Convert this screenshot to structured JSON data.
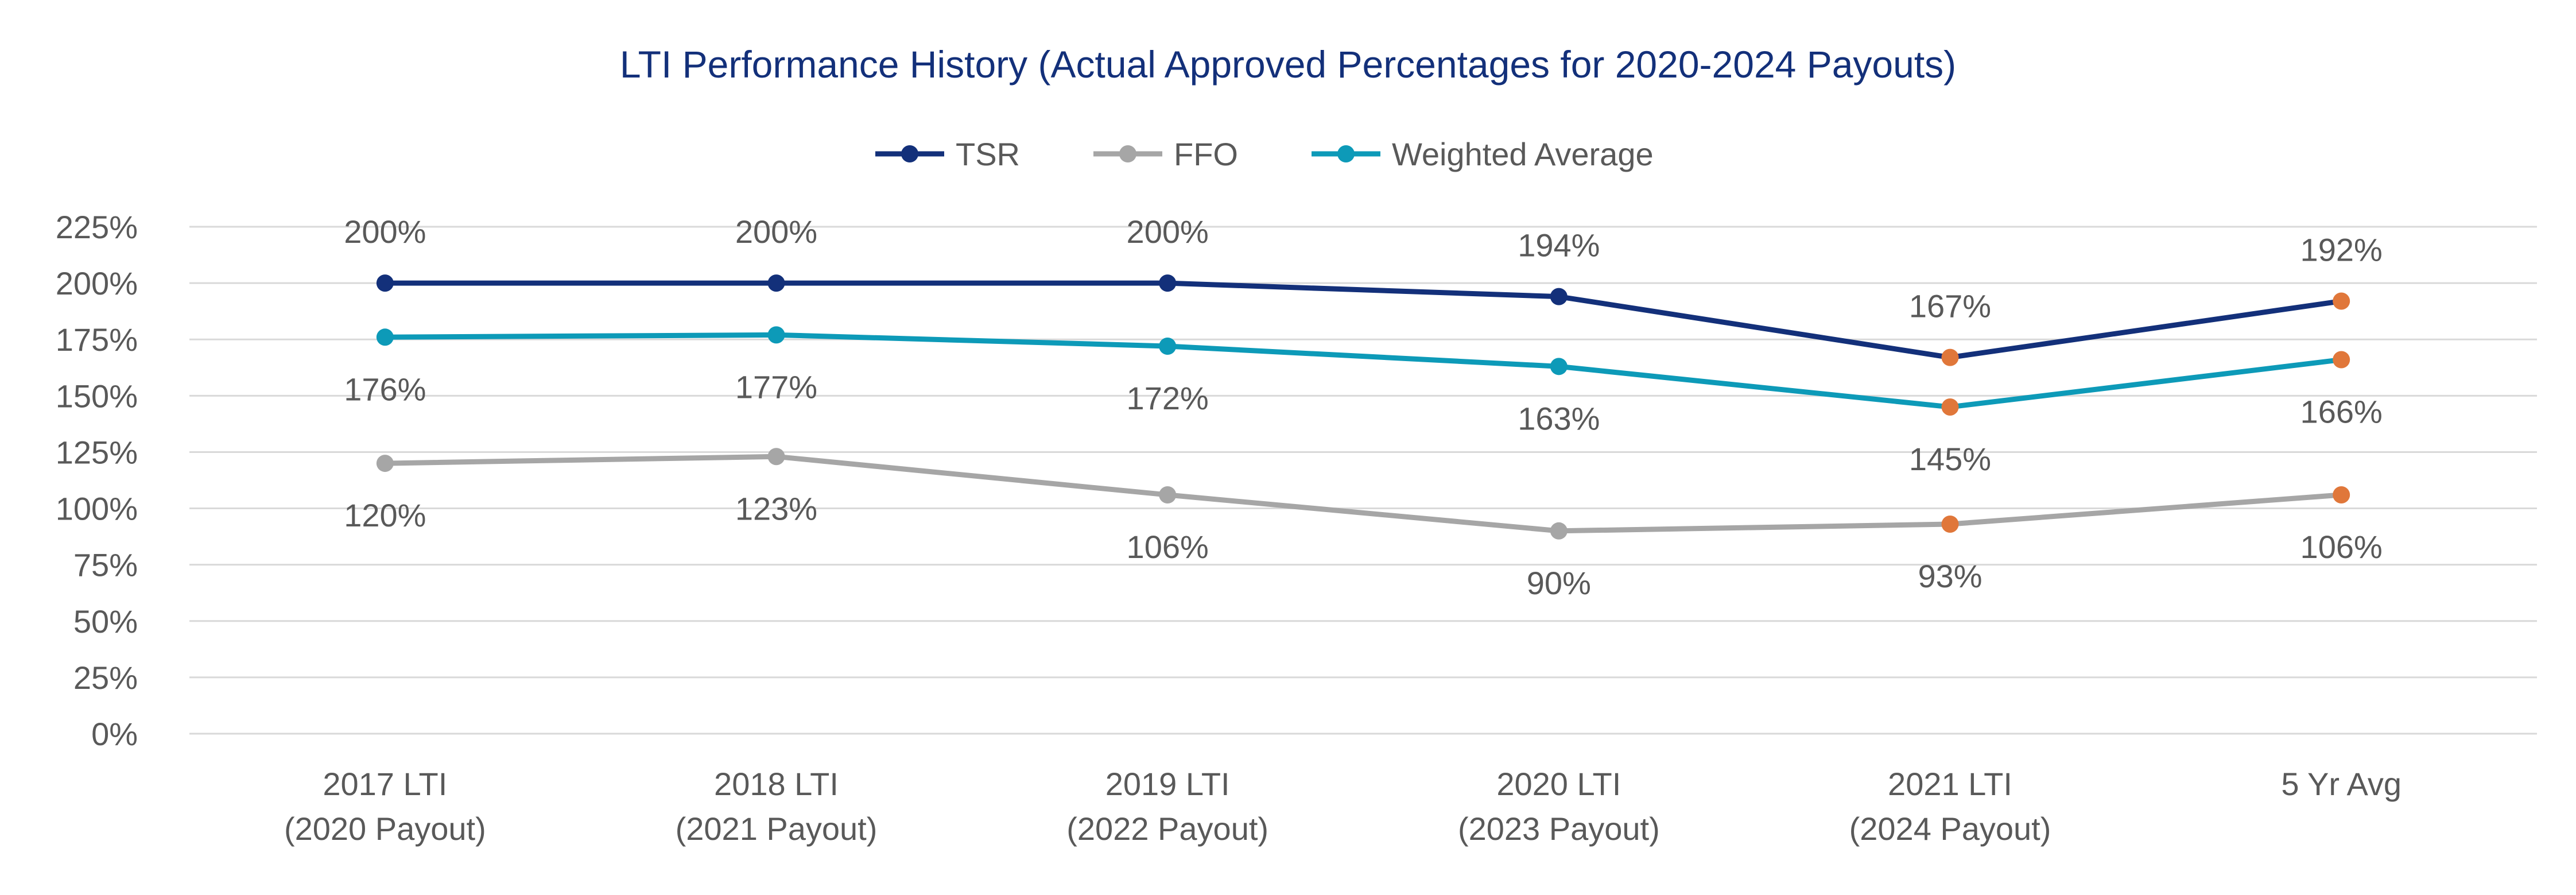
{
  "chart_data": {
    "type": "line",
    "title": "LTI Performance History (Actual Approved Percentages for 2020-2024 Payouts)",
    "xlabel": "",
    "ylabel": "",
    "ylim": [
      0,
      225
    ],
    "yticks": [
      "0%",
      "25%",
      "50%",
      "75%",
      "100%",
      "125%",
      "150%",
      "175%",
      "200%",
      "225%"
    ],
    "ytick_values": [
      0,
      25,
      50,
      75,
      100,
      125,
      150,
      175,
      200,
      225
    ],
    "categories": [
      [
        "2017 LTI",
        "(2020 Payout)"
      ],
      [
        "2018 LTI",
        "(2021 Payout)"
      ],
      [
        "2019 LTI",
        "(2022 Payout)"
      ],
      [
        "2020 LTI",
        "(2023 Payout)"
      ],
      [
        "2021 LTI",
        "(2024 Payout)"
      ],
      [
        "5 Yr Avg"
      ]
    ],
    "grid": true,
    "legend_position": "top-center",
    "series": [
      {
        "name": "TSR",
        "color": "#13307a",
        "values": [
          200,
          200,
          200,
          194,
          167,
          192
        ],
        "labels": [
          "200%",
          "200%",
          "200%",
          "194%",
          "167%",
          "192%"
        ],
        "label_side": "above"
      },
      {
        "name": "FFO",
        "color": "#a6a6a6",
        "values": [
          120,
          123,
          106,
          90,
          93,
          106
        ],
        "labels": [
          "120%",
          "123%",
          "106%",
          "90%",
          "93%",
          "106%"
        ],
        "label_side": "below"
      },
      {
        "name": "Weighted Average",
        "color": "#0d9ab8",
        "values": [
          176,
          177,
          172,
          163,
          145,
          166
        ],
        "labels": [
          "176%",
          "177%",
          "172%",
          "163%",
          "145%",
          "166%"
        ],
        "label_side": "below"
      }
    ],
    "highlight_color": "#e0773a",
    "highlight_from_index": 4
  },
  "colors": {
    "title": "#13307a",
    "text": "#595959",
    "grid": "#d9d9d9"
  }
}
